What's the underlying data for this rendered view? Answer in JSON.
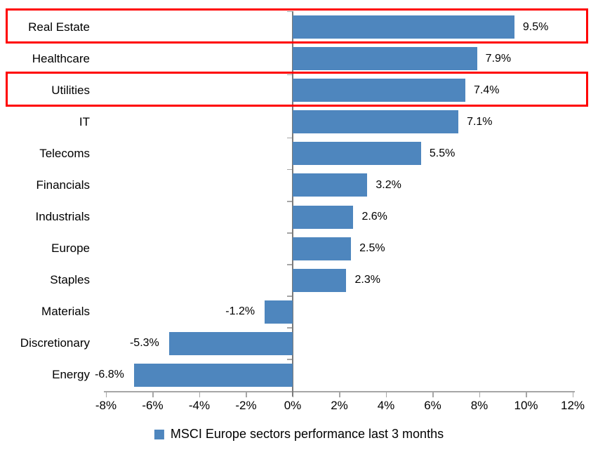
{
  "chart_data": {
    "type": "bar",
    "orientation": "horizontal",
    "title": "",
    "categories": [
      "Real Estate",
      "Healthcare",
      "Utilities",
      "IT",
      "Telecoms",
      "Financials",
      "Industrials",
      "Europe",
      "Staples",
      "Materials",
      "Discretionary",
      "Energy"
    ],
    "values": [
      9.5,
      7.9,
      7.4,
      7.1,
      5.5,
      3.2,
      2.6,
      2.5,
      2.3,
      -1.2,
      -5.3,
      -6.8
    ],
    "value_labels": [
      "9.5%",
      "7.9%",
      "7.4%",
      "7.1%",
      "5.5%",
      "3.2%",
      "2.6%",
      "2.5%",
      "2.3%",
      "-1.2%",
      "-5.3%",
      "-6.8%"
    ],
    "xlim": [
      -8,
      12
    ],
    "x_ticks": [
      -8,
      -6,
      -4,
      -2,
      0,
      2,
      4,
      6,
      8,
      10,
      12
    ],
    "x_tick_labels": [
      "-8%",
      "-6%",
      "-4%",
      "-2%",
      "0%",
      "2%",
      "4%",
      "6%",
      "8%",
      "10%",
      "12%"
    ],
    "grid": false,
    "legend": "MSCI Europe sectors performance last 3 months",
    "legend_position": "bottom",
    "bar_color": "#4E86BE",
    "axis_line_color": "#A6A6A6",
    "zero_line_color": "#7A7A7A",
    "highlight_color": "#FF0000",
    "highlighted_categories": [
      "Real Estate",
      "Utilities"
    ]
  }
}
